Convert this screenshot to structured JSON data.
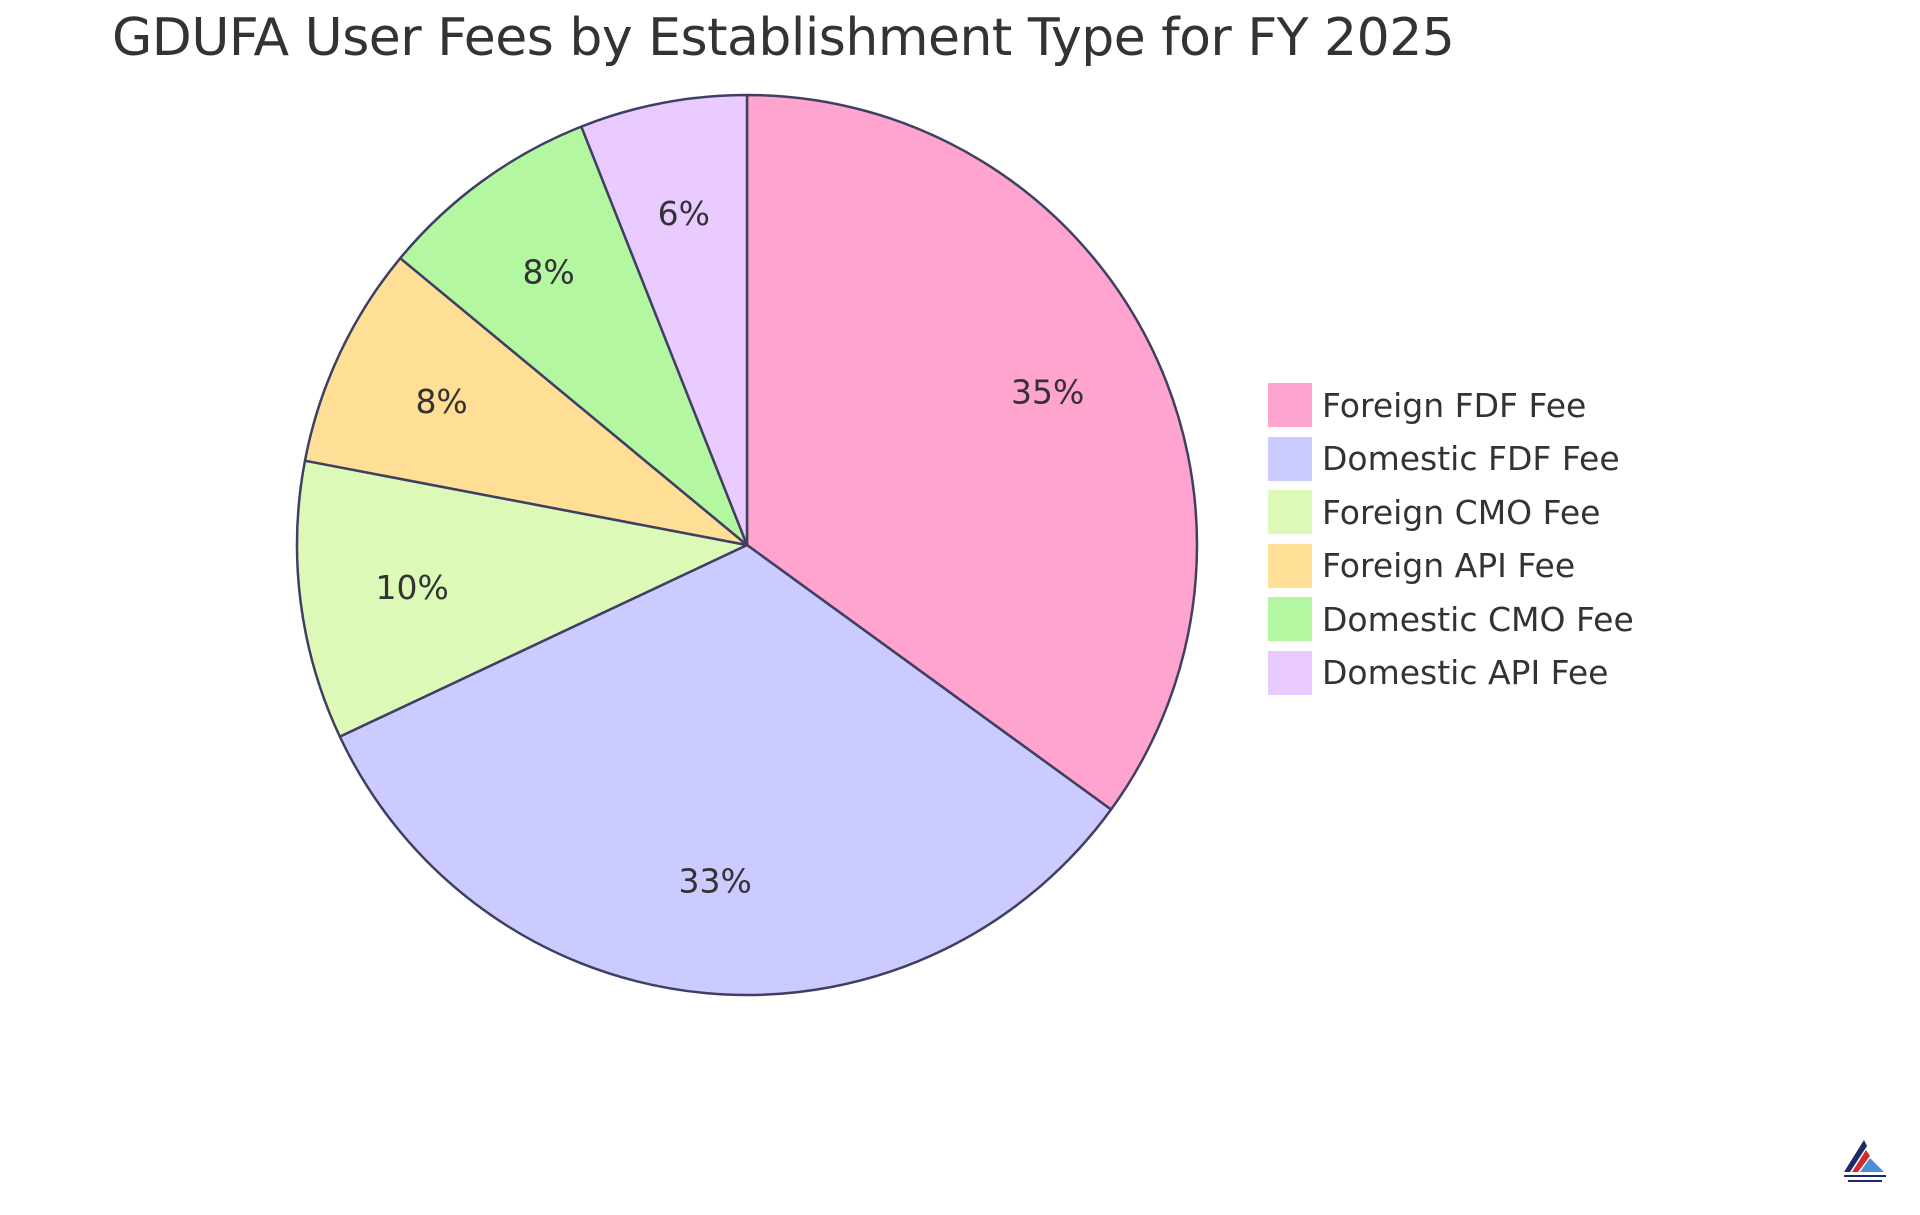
{
  "chart_data": {
    "type": "pie",
    "title": "GDUFA User Fees by Establishment Type for FY 2025",
    "slices": [
      {
        "label": "Foreign FDF Fee",
        "value": 35,
        "display": "35%",
        "color": "#FFA3CF"
      },
      {
        "label": "Domestic FDF Fee",
        "value": 33,
        "display": "33%",
        "color": "#CBCBFF"
      },
      {
        "label": "Foreign CMO Fee",
        "value": 10,
        "display": "10%",
        "color": "#DCF9B8"
      },
      {
        "label": "Foreign API Fee",
        "value": 8,
        "display": "8%",
        "color": "#FFDE95"
      },
      {
        "label": "Domestic CMO Fee",
        "value": 8,
        "display": "8%",
        "color": "#B3F8A1"
      },
      {
        "label": "Domestic API Fee",
        "value": 6,
        "display": "6%",
        "color": "#E9CBFF"
      }
    ],
    "legend_position": "right",
    "start_angle": "12 o'clock",
    "direction": "clockwise"
  },
  "colors": {
    "slice_stroke": "#3F3F63",
    "text": "#333333",
    "background": "#ffffff"
  },
  "logo": {
    "icon": "mountain-logo-icon",
    "colors": [
      "#1B2A6B",
      "#D42A2A",
      "#4A90D9"
    ]
  }
}
